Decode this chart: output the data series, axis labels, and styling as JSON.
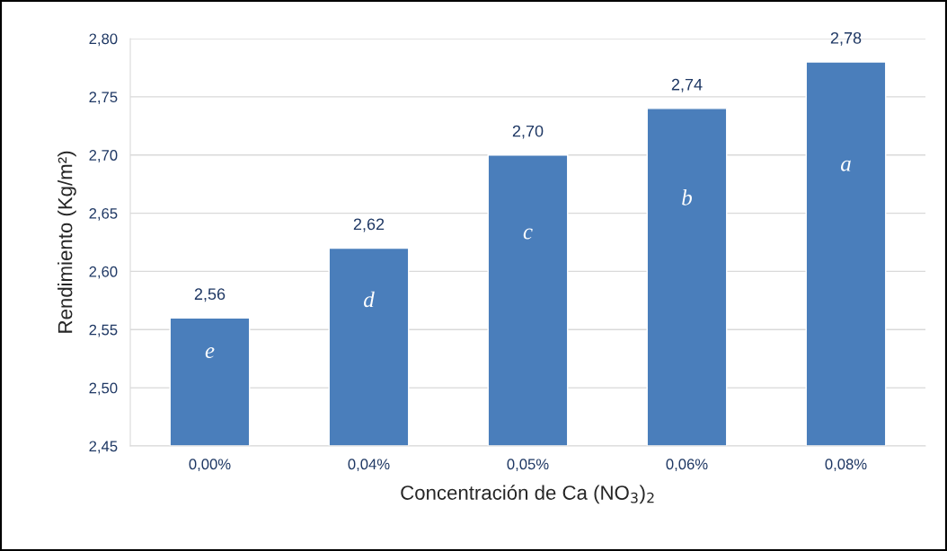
{
  "chart_data": {
    "type": "bar",
    "xlabel": "Concentración de Ca (NO$_{3}$)$_{2}$",
    "ylabel": "Rendimiento (Kg/m²)",
    "categories": [
      "0,00%",
      "0,04%",
      "0,05%",
      "0,06%",
      "0,08%"
    ],
    "values": [
      2.56,
      2.62,
      2.7,
      2.74,
      2.78
    ],
    "value_labels": [
      "2,56",
      "2,62",
      "2,70",
      "2,74",
      "2,78"
    ],
    "color": "#4a7ebb",
    "ylim": [
      2.45,
      2.8
    ],
    "yticks": [
      {
        "value": 2.45,
        "label": "2,45"
      },
      {
        "value": 2.5,
        "label": "2,50"
      },
      {
        "value": 2.55,
        "label": "2,55"
      },
      {
        "value": 2.6,
        "label": "2,60"
      },
      {
        "value": 2.65,
        "label": "2,65"
      },
      {
        "value": 2.7,
        "label": "2,70"
      },
      {
        "value": 2.75,
        "label": "2,75"
      },
      {
        "value": 2.8,
        "label": "2,80"
      }
    ],
    "grid": "y",
    "annotations": [
      "e",
      "d",
      "c",
      "b",
      "a"
    ]
  }
}
